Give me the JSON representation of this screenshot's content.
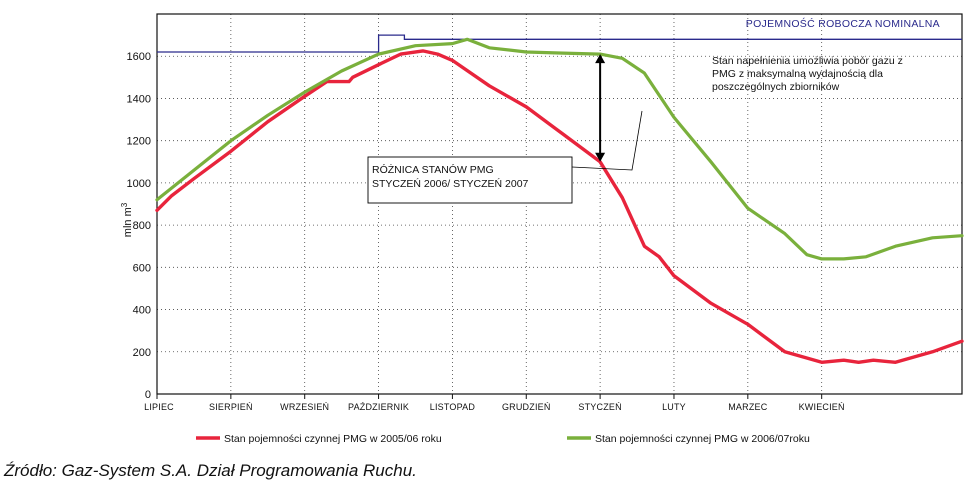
{
  "chart_data": {
    "type": "line",
    "ylabel": "mln m3",
    "ylabel_base": "mln m",
    "ylabel_exp": "3",
    "ylim": [
      0,
      1800
    ],
    "yticks": [
      0,
      200,
      400,
      600,
      800,
      1000,
      1200,
      1400,
      1600
    ],
    "xlim": [
      0,
      10.9
    ],
    "categories": [
      "LIPIEC",
      "SIERPIEŃ",
      "WRZESIEŃ",
      "PAŹDZIERNIK",
      "LISTOPAD",
      "GRUDZIEŃ",
      "STYCZEŃ",
      "LUTY",
      "MARZEC",
      "KWIECIEŃ"
    ],
    "grid": true,
    "nominal": {
      "label": "POJEMNOŚĆ ROBOCZA NOMINALNA",
      "x": [
        0,
        3.0,
        3.0,
        3.35,
        3.35,
        10.9
      ],
      "y": [
        1620,
        1620,
        1700,
        1700,
        1680,
        1680
      ]
    },
    "series": [
      {
        "name": "Stan pojemności czynnej PMG w 2005/06 roku",
        "color": "#e8243c",
        "x": [
          0,
          0.2,
          0.5,
          1.0,
          1.5,
          2.0,
          2.3,
          2.6,
          2.65,
          3.0,
          3.3,
          3.6,
          3.8,
          4.0,
          4.5,
          5.0,
          5.5,
          6.0,
          6.3,
          6.6,
          6.8,
          7.0,
          7.5,
          8.0,
          8.5,
          9.0,
          9.3,
          9.5,
          9.7,
          10.0,
          10.5,
          10.9
        ],
        "y": [
          870,
          940,
          1020,
          1150,
          1290,
          1410,
          1480,
          1480,
          1500,
          1560,
          1610,
          1625,
          1610,
          1580,
          1460,
          1360,
          1230,
          1100,
          930,
          700,
          650,
          560,
          430,
          330,
          200,
          150,
          160,
          150,
          160,
          150,
          200,
          250
        ]
      },
      {
        "name": "Stan pojemności czynnej PMG w 2006/07roku",
        "color": "#7ab03c",
        "x": [
          0,
          0.5,
          1.0,
          1.5,
          2.0,
          2.5,
          3.0,
          3.5,
          4.0,
          4.2,
          4.5,
          5.0,
          5.5,
          6.0,
          6.3,
          6.6,
          7.0,
          7.5,
          8.0,
          8.5,
          8.8,
          9.0,
          9.3,
          9.6,
          10.0,
          10.5,
          10.9
        ],
        "y": [
          920,
          1060,
          1200,
          1320,
          1430,
          1530,
          1610,
          1650,
          1660,
          1680,
          1640,
          1620,
          1615,
          1610,
          1590,
          1520,
          1310,
          1100,
          880,
          760,
          660,
          640,
          640,
          650,
          700,
          740,
          750
        ]
      }
    ],
    "annotations": [
      {
        "lines": [
          "Stan napełnienia umożliwia pobór gazu z",
          "PMG z maksymalną wydajnością dla",
          "poszczególnych zbiorników"
        ]
      },
      {
        "lines": [
          "RÓŻNICA STANÓW PMG",
          "STYCZEŃ 2006/ STYCZEŃ 2007"
        ]
      }
    ]
  },
  "colors": {
    "axis": "#111111",
    "grid": "#444444",
    "nominal": "#2a2a8c",
    "red": "#e8243c",
    "green": "#7ab03c"
  },
  "source": "Źródło: Gaz-System S.A. Dział Programowania Ruchu."
}
